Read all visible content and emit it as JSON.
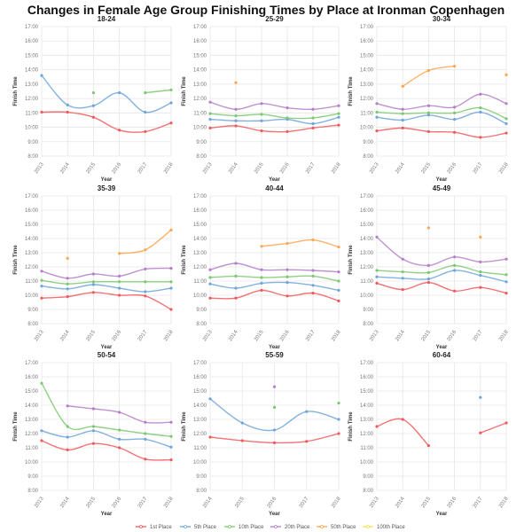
{
  "title": "Changes in Female Age Group Finishing Times by Place at Ironman Copenhagen",
  "chart_data": {
    "type": "line",
    "title": "Changes in Female Age Group Finishing Times by Place at Ironman Copenhagen",
    "xlabel": "Year",
    "ylabel": "Finish Time",
    "y_unit": "hours",
    "ylim": [
      8,
      17
    ],
    "yticks": [
      "8:00",
      "9:00",
      "10:00",
      "11:00",
      "12:00",
      "13:00",
      "14:00",
      "15:00",
      "16:00",
      "17:00"
    ],
    "grid": true,
    "legend_position": "bottom",
    "legend": [
      {
        "name": "1st Place",
        "color": "#f05a5e"
      },
      {
        "name": "5th Place",
        "color": "#6fa5d8"
      },
      {
        "name": "10th Place",
        "color": "#7cc870"
      },
      {
        "name": "20th Place",
        "color": "#b47fc8"
      },
      {
        "name": "50th Place",
        "color": "#fca652"
      },
      {
        "name": "100th Place",
        "color": "#f2e44a"
      }
    ],
    "panels": [
      {
        "title": "18-24",
        "x": [
          "2013",
          "2014",
          "2015",
          "2016",
          "2017",
          "2018"
        ],
        "series": [
          [
            11.05,
            11.05,
            10.7,
            9.8,
            9.7,
            10.3
          ],
          [
            13.6,
            11.55,
            11.5,
            12.4,
            11.05,
            11.7
          ],
          [
            null,
            null,
            12.4,
            null,
            12.4,
            12.6
          ],
          [
            null,
            null,
            null,
            null,
            null,
            null
          ],
          [
            null,
            null,
            null,
            null,
            null,
            null
          ],
          [
            null,
            null,
            null,
            null,
            null,
            null
          ]
        ]
      },
      {
        "title": "25-29",
        "x": [
          "2013",
          "2014",
          "2015",
          "2016",
          "2017",
          "2018"
        ],
        "series": [
          [
            9.95,
            10.1,
            9.75,
            9.7,
            9.95,
            10.15
          ],
          [
            10.55,
            10.45,
            10.45,
            10.55,
            10.25,
            10.7
          ],
          [
            10.95,
            10.8,
            10.9,
            10.65,
            10.65,
            10.95
          ],
          [
            11.75,
            11.25,
            11.65,
            11.35,
            11.25,
            11.5
          ],
          [
            null,
            13.1,
            null,
            null,
            null,
            null
          ],
          [
            null,
            null,
            null,
            null,
            null,
            null
          ]
        ]
      },
      {
        "title": "30-34",
        "x": [
          "2013",
          "2014",
          "2015",
          "2016",
          "2017",
          "2018"
        ],
        "series": [
          [
            9.75,
            9.95,
            9.7,
            9.65,
            9.3,
            9.6
          ],
          [
            10.7,
            10.5,
            10.85,
            10.55,
            11.05,
            10.25
          ],
          [
            11.05,
            10.95,
            11.0,
            11.0,
            11.35,
            10.6
          ],
          [
            11.65,
            11.25,
            11.5,
            11.4,
            12.3,
            11.65
          ],
          [
            null,
            12.85,
            13.95,
            14.25,
            null,
            13.65
          ],
          [
            null,
            null,
            null,
            null,
            null,
            null
          ]
        ]
      },
      {
        "title": "35-39",
        "x": [
          "2013",
          "2014",
          "2015",
          "2016",
          "2017",
          "2018"
        ],
        "series": [
          [
            9.8,
            9.9,
            10.2,
            10.0,
            9.95,
            9.0
          ],
          [
            10.65,
            10.45,
            10.75,
            10.5,
            10.25,
            10.5
          ],
          [
            11.05,
            10.8,
            10.95,
            10.95,
            10.95,
            10.95
          ],
          [
            11.7,
            11.2,
            11.5,
            11.35,
            11.85,
            11.9
          ],
          [
            null,
            12.6,
            null,
            12.95,
            13.2,
            14.6
          ],
          [
            null,
            null,
            null,
            null,
            null,
            null
          ]
        ]
      },
      {
        "title": "40-44",
        "x": [
          "2013",
          "2014",
          "2015",
          "2016",
          "2017",
          "2018"
        ],
        "series": [
          [
            9.8,
            9.8,
            10.35,
            9.95,
            10.15,
            9.6
          ],
          [
            10.8,
            10.5,
            10.85,
            10.9,
            10.7,
            10.35
          ],
          [
            11.25,
            11.35,
            11.25,
            11.3,
            11.35,
            11.0
          ],
          [
            11.8,
            12.25,
            11.8,
            11.8,
            11.75,
            11.65
          ],
          [
            null,
            null,
            13.45,
            13.65,
            13.9,
            13.4
          ],
          [
            null,
            null,
            null,
            null,
            null,
            null
          ]
        ]
      },
      {
        "title": "45-49",
        "x": [
          "2013",
          "2014",
          "2015",
          "2016",
          "2017",
          "2018"
        ],
        "series": [
          [
            10.85,
            10.4,
            10.9,
            10.3,
            10.55,
            10.15
          ],
          [
            11.3,
            11.2,
            11.15,
            11.75,
            11.4,
            10.95
          ],
          [
            11.75,
            11.65,
            11.6,
            12.1,
            11.65,
            11.45
          ],
          [
            14.1,
            12.55,
            12.1,
            12.7,
            12.35,
            12.55
          ],
          [
            null,
            null,
            14.75,
            null,
            14.1,
            null
          ],
          [
            null,
            null,
            null,
            null,
            null,
            null
          ]
        ]
      },
      {
        "title": "50-54",
        "x": [
          "2013",
          "2014",
          "2015",
          "2016",
          "2017",
          "2018"
        ],
        "series": [
          [
            11.5,
            10.85,
            11.3,
            11.0,
            10.2,
            10.15
          ],
          [
            12.2,
            11.75,
            12.2,
            11.6,
            11.6,
            11.05
          ],
          [
            15.55,
            12.5,
            12.5,
            12.25,
            12.0,
            11.8
          ],
          [
            null,
            13.95,
            13.75,
            13.5,
            12.8,
            12.8
          ],
          [
            null,
            null,
            null,
            null,
            null,
            null
          ],
          [
            null,
            null,
            null,
            null,
            null,
            null
          ]
        ]
      },
      {
        "title": "55-59",
        "x": [
          "2014",
          "2015",
          "2016",
          "2017",
          "2018"
        ],
        "series": [
          [
            11.75,
            11.5,
            11.35,
            11.45,
            12.0
          ],
          [
            14.45,
            12.75,
            12.25,
            13.55,
            13.0
          ],
          [
            null,
            null,
            13.85,
            null,
            14.15
          ],
          [
            null,
            null,
            15.3,
            null,
            null
          ],
          [
            null,
            null,
            null,
            null,
            null
          ],
          [
            null,
            null,
            null,
            null,
            null
          ]
        ]
      },
      {
        "title": "60-64",
        "x": [
          "2013",
          "2014",
          "2015",
          "2016",
          "2017",
          "2018"
        ],
        "series": [
          [
            12.5,
            13.0,
            11.15,
            null,
            12.05,
            12.75
          ],
          [
            null,
            null,
            null,
            null,
            14.55,
            null
          ],
          [
            null,
            null,
            null,
            null,
            null,
            null
          ],
          [
            null,
            null,
            null,
            null,
            null,
            null
          ],
          [
            null,
            null,
            null,
            null,
            null,
            null
          ],
          [
            null,
            null,
            null,
            null,
            null,
            null
          ]
        ]
      }
    ]
  }
}
